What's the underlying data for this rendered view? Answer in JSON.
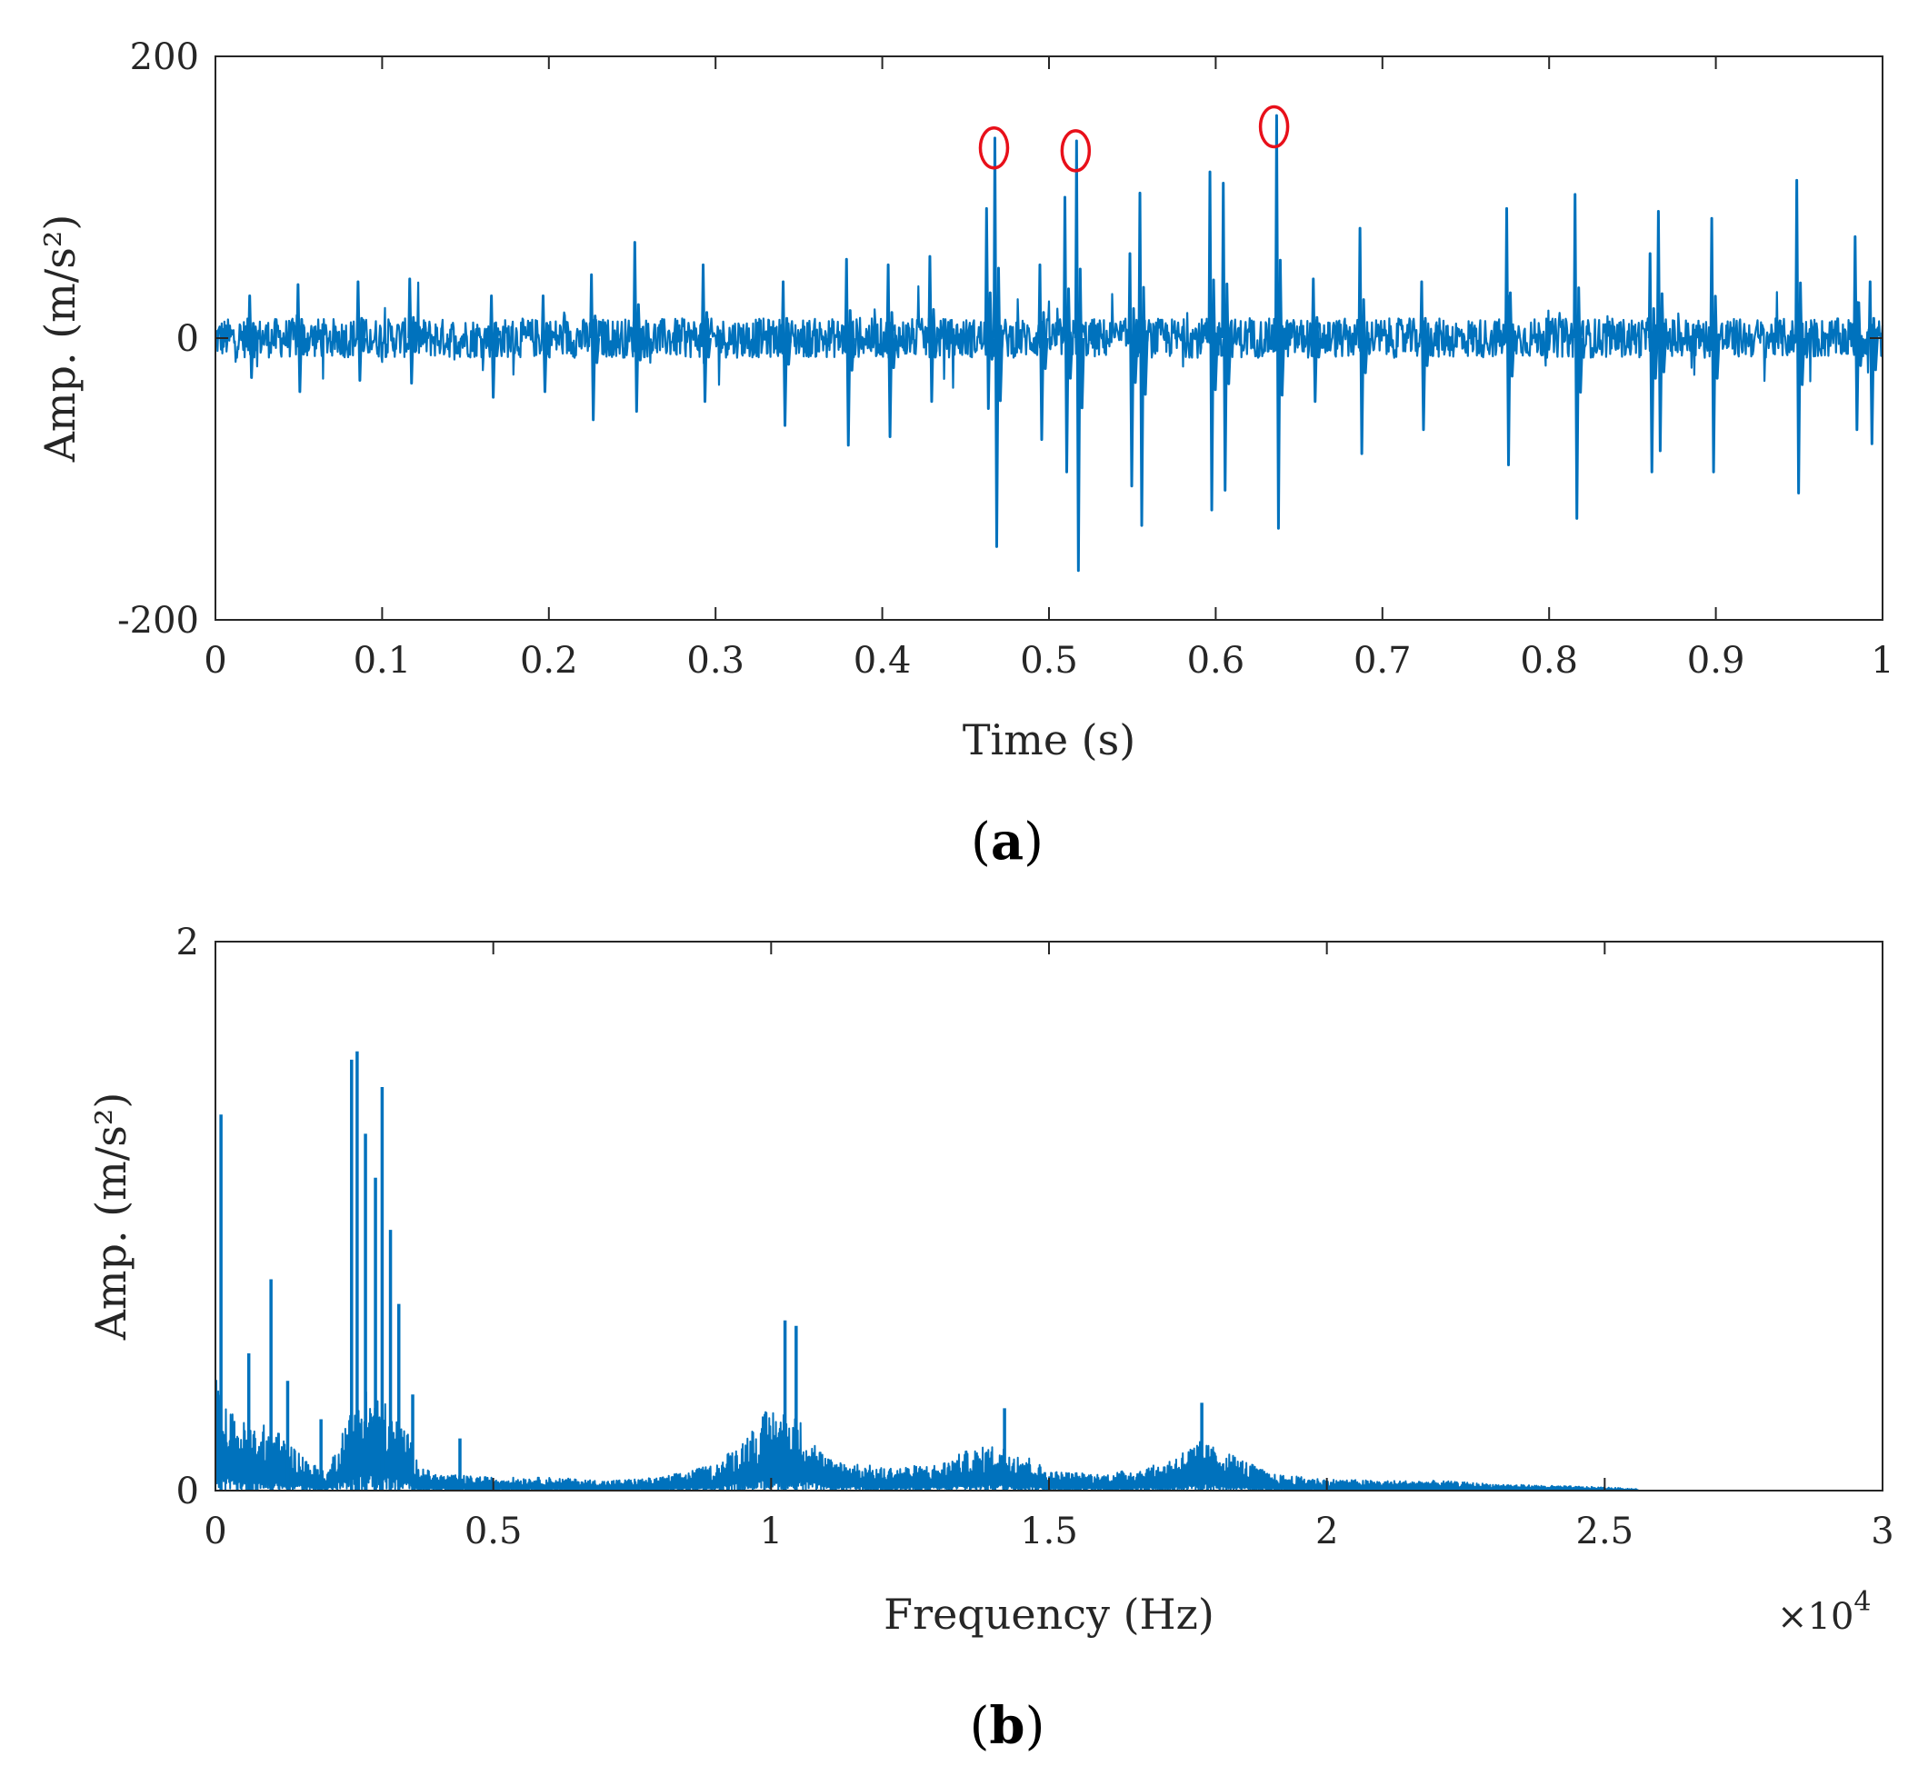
{
  "colors": {
    "series": "#0072BD",
    "marker": "#E8101A",
    "axis": "#262626"
  },
  "chart_data": [
    {
      "id": "a",
      "type": "line",
      "panel_label": "a",
      "xlabel": "Time (s)",
      "ylabel": "Amp. (m/s²)",
      "xlim": [
        0,
        1
      ],
      "ylim": [
        -200,
        200
      ],
      "xticks": [
        0,
        0.1,
        0.2,
        0.3,
        0.4,
        0.5,
        0.6,
        0.7,
        0.8,
        0.9,
        1
      ],
      "xtick_labels": [
        "0",
        "0.1",
        "0.2",
        "0.3",
        "0.4",
        "0.5",
        "0.6",
        "0.7",
        "0.8",
        "0.9",
        "1"
      ],
      "yticks": [
        -200,
        0,
        200
      ],
      "ytick_labels": [
        "-200",
        "0",
        "200"
      ],
      "noise_amplitude": 14,
      "impulses": [
        {
          "t": 0.02,
          "pos": 30,
          "neg": -28
        },
        {
          "t": 0.049,
          "pos": 38,
          "neg": -38
        },
        {
          "t": 0.085,
          "pos": 40,
          "neg": -30
        },
        {
          "t": 0.116,
          "pos": 42,
          "neg": -32
        },
        {
          "t": 0.165,
          "pos": 30,
          "neg": -42
        },
        {
          "t": 0.196,
          "pos": 30,
          "neg": -38
        },
        {
          "t": 0.225,
          "pos": 45,
          "neg": -58
        },
        {
          "t": 0.251,
          "pos": 68,
          "neg": -52
        },
        {
          "t": 0.292,
          "pos": 52,
          "neg": -45
        },
        {
          "t": 0.34,
          "pos": 40,
          "neg": -62
        },
        {
          "t": 0.378,
          "pos": 56,
          "neg": -76
        },
        {
          "t": 0.403,
          "pos": 52,
          "neg": -70
        },
        {
          "t": 0.428,
          "pos": 58,
          "neg": -45
        },
        {
          "t": 0.462,
          "pos": 92,
          "neg": -50
        },
        {
          "t": 0.467,
          "pos": 142,
          "neg": -148
        },
        {
          "t": 0.494,
          "pos": 52,
          "neg": -72
        },
        {
          "t": 0.509,
          "pos": 100,
          "neg": -95
        },
        {
          "t": 0.516,
          "pos": 140,
          "neg": -165
        },
        {
          "t": 0.548,
          "pos": 60,
          "neg": -105
        },
        {
          "t": 0.554,
          "pos": 103,
          "neg": -133
        },
        {
          "t": 0.596,
          "pos": 118,
          "neg": -122
        },
        {
          "t": 0.604,
          "pos": 110,
          "neg": -108
        },
        {
          "t": 0.636,
          "pos": 158,
          "neg": -135
        },
        {
          "t": 0.658,
          "pos": 42,
          "neg": -45
        },
        {
          "t": 0.686,
          "pos": 78,
          "neg": -82
        },
        {
          "t": 0.723,
          "pos": 40,
          "neg": -65
        },
        {
          "t": 0.774,
          "pos": 92,
          "neg": -90
        },
        {
          "t": 0.815,
          "pos": 102,
          "neg": -128
        },
        {
          "t": 0.86,
          "pos": 60,
          "neg": -95
        },
        {
          "t": 0.865,
          "pos": 90,
          "neg": -80
        },
        {
          "t": 0.897,
          "pos": 85,
          "neg": -95
        },
        {
          "t": 0.948,
          "pos": 112,
          "neg": -110
        },
        {
          "t": 0.983,
          "pos": 72,
          "neg": -65
        },
        {
          "t": 0.992,
          "pos": 40,
          "neg": -75
        }
      ],
      "annotations": [
        {
          "shape": "ellipse",
          "x": 0.467,
          "y": 135
        },
        {
          "shape": "ellipse",
          "x": 0.516,
          "y": 133
        },
        {
          "shape": "ellipse",
          "x": 0.635,
          "y": 150
        }
      ]
    },
    {
      "id": "b",
      "type": "line",
      "panel_label": "b",
      "xlabel": "Frequency (Hz)",
      "ylabel": "Amp. (m/s²)",
      "x_multiplier": "×10",
      "x_multiplier_exponent": "4",
      "xlim": [
        0,
        30000
      ],
      "ylim": [
        0,
        2
      ],
      "xticks": [
        0,
        5000,
        10000,
        15000,
        20000,
        25000,
        30000
      ],
      "xtick_labels": [
        "0",
        "0.5",
        "1",
        "1.5",
        "2",
        "2.5",
        "3"
      ],
      "yticks": [
        0,
        2
      ],
      "ytick_labels": [
        "0",
        "2"
      ],
      "spectrum_end": 25600,
      "envelope": [
        [
          0,
          0.35
        ],
        [
          200,
          0.25
        ],
        [
          600,
          0.2
        ],
        [
          1000,
          0.2
        ],
        [
          1500,
          0.12
        ],
        [
          2000,
          0.05
        ],
        [
          2300,
          0.2
        ],
        [
          2700,
          0.32
        ],
        [
          3000,
          0.28
        ],
        [
          3400,
          0.2
        ],
        [
          3700,
          0.07
        ],
        [
          4000,
          0.05
        ],
        [
          5000,
          0.04
        ],
        [
          6000,
          0.04
        ],
        [
          7000,
          0.03
        ],
        [
          8000,
          0.04
        ],
        [
          9000,
          0.08
        ],
        [
          9500,
          0.16
        ],
        [
          10000,
          0.26
        ],
        [
          10500,
          0.22
        ],
        [
          11000,
          0.1
        ],
        [
          12000,
          0.07
        ],
        [
          13000,
          0.08
        ],
        [
          13500,
          0.12
        ],
        [
          14000,
          0.14
        ],
        [
          14500,
          0.12
        ],
        [
          15000,
          0.06
        ],
        [
          16000,
          0.05
        ],
        [
          17000,
          0.08
        ],
        [
          17700,
          0.15
        ],
        [
          18200,
          0.12
        ],
        [
          19000,
          0.05
        ],
        [
          20000,
          0.035
        ],
        [
          21000,
          0.03
        ],
        [
          22000,
          0.03
        ],
        [
          23000,
          0.02
        ],
        [
          24000,
          0.015
        ],
        [
          25000,
          0.01
        ],
        [
          25600,
          0.005
        ]
      ],
      "peaks": [
        {
          "f": 100,
          "a": 1.37
        },
        {
          "f": 1000,
          "a": 0.77
        },
        {
          "f": 600,
          "a": 0.5
        },
        {
          "f": 1300,
          "a": 0.4
        },
        {
          "f": 1900,
          "a": 0.26
        },
        {
          "f": 2450,
          "a": 1.57
        },
        {
          "f": 2550,
          "a": 1.6
        },
        {
          "f": 2700,
          "a": 1.3
        },
        {
          "f": 2880,
          "a": 1.14
        },
        {
          "f": 3000,
          "a": 1.47
        },
        {
          "f": 3150,
          "a": 0.95
        },
        {
          "f": 3300,
          "a": 0.68
        },
        {
          "f": 3550,
          "a": 0.35
        },
        {
          "f": 4400,
          "a": 0.19
        },
        {
          "f": 10250,
          "a": 0.62
        },
        {
          "f": 10450,
          "a": 0.6
        },
        {
          "f": 14200,
          "a": 0.3
        },
        {
          "f": 17750,
          "a": 0.32
        }
      ]
    }
  ]
}
